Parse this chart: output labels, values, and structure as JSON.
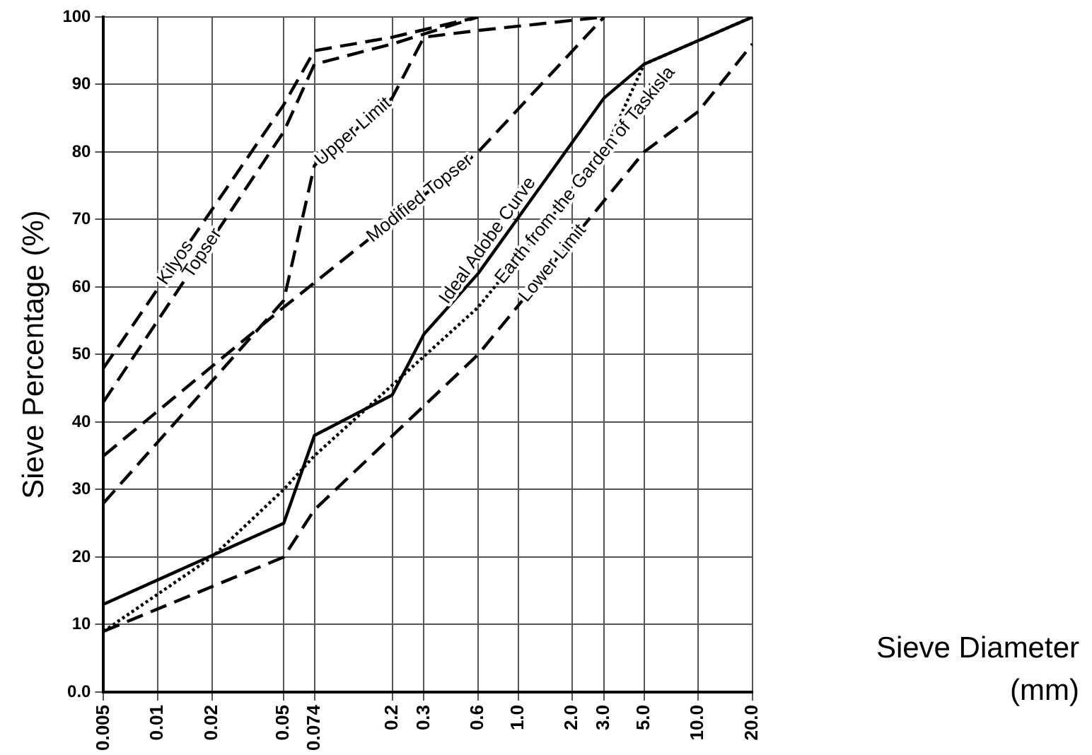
{
  "chart_data": {
    "type": "line",
    "xlabel": "Sieve Diameter (mm)",
    "ylabel": "Sieve Percentage (%)",
    "log": "x",
    "xlim": [
      0.005,
      20
    ],
    "ylim": [
      0,
      100
    ],
    "xticks": [
      0.005,
      0.01,
      0.02,
      0.05,
      0.074,
      0.2,
      0.3,
      0.6,
      {
        "value": 1,
        "label": "1.0"
      },
      {
        "value": 2,
        "label": "2.0"
      },
      {
        "value": 3,
        "label": "3.0"
      },
      {
        "value": 5,
        "label": "5.0"
      },
      {
        "value": 10,
        "label": "10.0"
      },
      {
        "value": 20,
        "label": "20.0"
      }
    ],
    "yticks": [
      {
        "value": 0,
        "label": "0.0"
      },
      10,
      20,
      30,
      40,
      50,
      60,
      70,
      80,
      90,
      100
    ],
    "grid": true,
    "legend": false,
    "marker": "none",
    "series": [
      {
        "name": "Kilyos",
        "color": "#000000",
        "line_style": "dashed",
        "x": [
          0.005,
          0.05,
          0.074,
          0.2,
          0.6
        ],
        "values": [
          48,
          87,
          95,
          97,
          100
        ]
      },
      {
        "name": "Topser",
        "color": "#000000",
        "line_style": "dashed",
        "x": [
          0.005,
          0.05,
          0.074,
          0.2,
          0.6
        ],
        "values": [
          43,
          83,
          93,
          96,
          100
        ]
      },
      {
        "name": "Upper Limit",
        "color": "#000000",
        "line_style": "dashed",
        "x": [
          0.005,
          0.05,
          0.074,
          0.2,
          0.3,
          0.6,
          3
        ],
        "values": [
          28,
          58,
          78,
          88,
          97,
          98,
          100
        ]
      },
      {
        "name": "Modified Topser",
        "color": "#000000",
        "line_style": "dashed",
        "x": [
          0.005,
          0.05,
          0.6,
          3
        ],
        "values": [
          35,
          57,
          80,
          100
        ]
      },
      {
        "name": "Ideal Adobe Curve",
        "color": "#000000",
        "line_style": "solid",
        "x": [
          0.005,
          0.05,
          0.074,
          0.2,
          0.3,
          0.6,
          3,
          5,
          20
        ],
        "values": [
          13,
          25,
          38,
          44,
          53,
          62,
          88,
          93,
          100
        ]
      },
      {
        "name": "Earth from the Garden of Taskisla",
        "color": "#000000",
        "line_style": "dotted",
        "x": [
          0.005,
          0.02,
          0.05,
          0.074,
          0.6,
          3,
          5,
          20
        ],
        "values": [
          9,
          20,
          30,
          35,
          57,
          80,
          93,
          100
        ]
      },
      {
        "name": "Lower Limit",
        "color": "#000000",
        "line_style": "dashed",
        "x": [
          0.005,
          0.05,
          0.074,
          0.6,
          5,
          10,
          20
        ],
        "values": [
          9,
          20,
          27,
          50,
          80,
          86,
          96
        ]
      }
    ]
  }
}
